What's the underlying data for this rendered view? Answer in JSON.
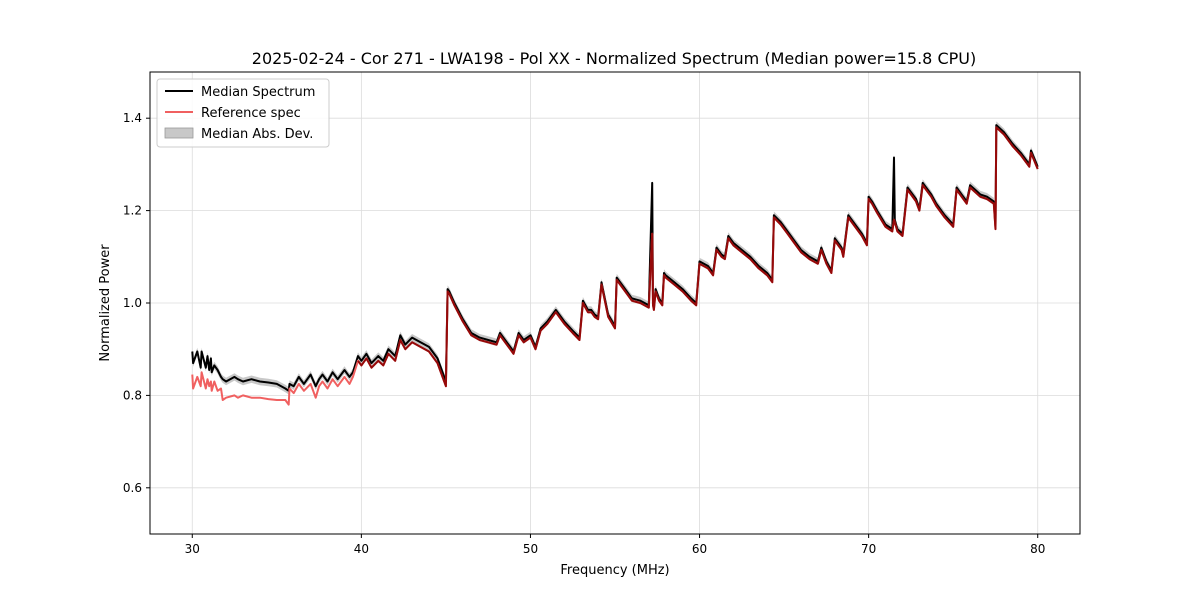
{
  "chart_data": {
    "type": "line",
    "title": "2025-02-24 - Cor 271 - LWA198 - Pol XX - Normalized Spectrum (Median power=15.8 CPU)",
    "xlabel": "Frequency (MHz)",
    "ylabel": "Normalized Power",
    "xlim": [
      27.5,
      82.5
    ],
    "ylim": [
      0.5,
      1.5
    ],
    "xticks": [
      30,
      40,
      50,
      60,
      70,
      80
    ],
    "xtick_labels": [
      "30",
      "40",
      "50",
      "60",
      "70",
      "80"
    ],
    "yticks": [
      0.6,
      0.8,
      1.0,
      1.2,
      1.4
    ],
    "ytick_labels": [
      "0.6",
      "0.8",
      "1.0",
      "1.2",
      "1.4"
    ],
    "grid": true,
    "legend_position": "top-left",
    "legend": [
      {
        "label": "Median Spectrum",
        "kind": "line",
        "color": "#000000"
      },
      {
        "label": "Reference spec",
        "kind": "line",
        "color": "#f06060"
      },
      {
        "label": "Median Abs. Dev.",
        "kind": "band",
        "color": "#c8c8c8"
      }
    ],
    "mad_halfwidth": 0.008,
    "series": [
      {
        "name": "Median Spectrum",
        "x": [
          30.0,
          30.05,
          30.3,
          30.5,
          30.55,
          30.8,
          30.9,
          31.0,
          31.1,
          31.15,
          31.3,
          31.5,
          31.7,
          31.8,
          32.0,
          32.5,
          32.7,
          33.0,
          33.5,
          34.0,
          34.5,
          35.0,
          35.5,
          35.7,
          35.75,
          36.0,
          36.3,
          36.6,
          37.0,
          37.3,
          37.5,
          37.7,
          38.0,
          38.3,
          38.6,
          39.0,
          39.3,
          39.5,
          39.8,
          40.0,
          40.3,
          40.6,
          41.0,
          41.3,
          41.6,
          42.0,
          42.3,
          42.6,
          43.0,
          43.5,
          44.0,
          44.5,
          45.0,
          45.1,
          45.2,
          45.5,
          46.0,
          46.5,
          47.0,
          47.5,
          48.0,
          48.2,
          48.5,
          48.8,
          49.0,
          49.3,
          49.6,
          50.0,
          50.3,
          50.6,
          51.0,
          51.5,
          52.0,
          52.5,
          52.9,
          53.1,
          53.4,
          53.6,
          53.8,
          54.0,
          54.2,
          54.6,
          55.0,
          55.1,
          55.5,
          56.0,
          56.5,
          57.0,
          57.2,
          57.25,
          57.3,
          57.4,
          57.6,
          57.8,
          57.9,
          58.0,
          58.5,
          59.0,
          59.5,
          59.8,
          60.0,
          60.5,
          60.8,
          61.0,
          61.3,
          61.5,
          61.7,
          62.0,
          62.5,
          63.0,
          63.5,
          64.0,
          64.3,
          64.4,
          64.8,
          65.2,
          65.6,
          66.0,
          66.5,
          67.0,
          67.2,
          67.5,
          67.8,
          68.0,
          68.4,
          68.5,
          68.8,
          69.2,
          69.6,
          69.9,
          70.0,
          70.2,
          70.5,
          71.0,
          71.4,
          71.5,
          71.55,
          71.7,
          72.0,
          72.3,
          72.5,
          72.8,
          73.0,
          73.2,
          73.4,
          73.7,
          74.0,
          74.5,
          75.0,
          75.2,
          75.5,
          75.8,
          76.0,
          76.3,
          76.6,
          77.0,
          77.4,
          77.5,
          77.55,
          78.0,
          78.5,
          79.0,
          79.5,
          79.6,
          80.0
        ],
        "y": [
          0.895,
          0.87,
          0.895,
          0.86,
          0.895,
          0.86,
          0.885,
          0.855,
          0.88,
          0.85,
          0.865,
          0.855,
          0.84,
          0.835,
          0.83,
          0.84,
          0.835,
          0.83,
          0.835,
          0.83,
          0.828,
          0.825,
          0.815,
          0.81,
          0.825,
          0.82,
          0.84,
          0.825,
          0.845,
          0.82,
          0.835,
          0.845,
          0.83,
          0.85,
          0.835,
          0.855,
          0.84,
          0.85,
          0.885,
          0.875,
          0.89,
          0.87,
          0.885,
          0.875,
          0.9,
          0.885,
          0.93,
          0.91,
          0.925,
          0.915,
          0.905,
          0.88,
          0.83,
          1.03,
          1.025,
          1.0,
          0.965,
          0.935,
          0.925,
          0.92,
          0.915,
          0.935,
          0.92,
          0.905,
          0.895,
          0.935,
          0.92,
          0.93,
          0.905,
          0.945,
          0.96,
          0.985,
          0.96,
          0.94,
          0.925,
          1.005,
          0.985,
          0.985,
          0.975,
          0.97,
          1.045,
          0.975,
          0.95,
          1.055,
          1.035,
          1.01,
          1.005,
          0.995,
          1.26,
          1.0,
          0.99,
          1.03,
          1.01,
          1.0,
          1.065,
          1.06,
          1.045,
          1.03,
          1.01,
          1.0,
          1.09,
          1.08,
          1.065,
          1.12,
          1.105,
          1.1,
          1.145,
          1.13,
          1.115,
          1.1,
          1.08,
          1.065,
          1.05,
          1.19,
          1.175,
          1.155,
          1.135,
          1.115,
          1.1,
          1.09,
          1.12,
          1.09,
          1.07,
          1.14,
          1.12,
          1.105,
          1.19,
          1.17,
          1.15,
          1.13,
          1.23,
          1.22,
          1.2,
          1.17,
          1.16,
          1.315,
          1.18,
          1.16,
          1.15,
          1.25,
          1.24,
          1.225,
          1.205,
          1.26,
          1.25,
          1.235,
          1.215,
          1.19,
          1.17,
          1.25,
          1.235,
          1.22,
          1.255,
          1.245,
          1.235,
          1.23,
          1.22,
          1.165,
          1.385,
          1.37,
          1.345,
          1.325,
          1.3,
          1.33,
          1.295
        ],
        "color": "#000000"
      },
      {
        "name": "Reference spec",
        "x": [
          30.0,
          30.05,
          30.3,
          30.5,
          30.55,
          30.8,
          30.9,
          31.0,
          31.1,
          31.15,
          31.3,
          31.5,
          31.7,
          31.8,
          32.0,
          32.5,
          32.7,
          33.0,
          33.5,
          34.0,
          34.5,
          35.0,
          35.5,
          35.7,
          35.75,
          36.0,
          36.3,
          36.6,
          37.0,
          37.3,
          37.5,
          37.7,
          38.0,
          38.3,
          38.6,
          39.0,
          39.3,
          39.5,
          39.8,
          40.0,
          40.3,
          40.6,
          41.0,
          41.3,
          41.6,
          42.0,
          42.3,
          42.6,
          43.0,
          43.5,
          44.0,
          44.5,
          45.0,
          45.1,
          45.2,
          45.5,
          46.0,
          46.5,
          47.0,
          47.5,
          48.0,
          48.2,
          48.5,
          48.8,
          49.0,
          49.3,
          49.6,
          50.0,
          50.3,
          50.6,
          51.0,
          51.5,
          52.0,
          52.5,
          52.9,
          53.1,
          53.4,
          53.6,
          53.8,
          54.0,
          54.2,
          54.6,
          55.0,
          55.1,
          55.5,
          56.0,
          56.5,
          57.0,
          57.2,
          57.25,
          57.3,
          57.4,
          57.6,
          57.8,
          57.9,
          58.0,
          58.5,
          59.0,
          59.5,
          59.8,
          60.0,
          60.5,
          60.8,
          61.0,
          61.3,
          61.5,
          61.7,
          62.0,
          62.5,
          63.0,
          63.5,
          64.0,
          64.3,
          64.4,
          64.8,
          65.2,
          65.6,
          66.0,
          66.5,
          67.0,
          67.2,
          67.5,
          67.8,
          68.0,
          68.4,
          68.5,
          68.8,
          69.2,
          69.6,
          69.9,
          70.0,
          70.2,
          70.5,
          71.0,
          71.4,
          71.5,
          71.55,
          71.7,
          72.0,
          72.3,
          72.5,
          72.8,
          73.0,
          73.2,
          73.4,
          73.7,
          74.0,
          74.5,
          75.0,
          75.2,
          75.5,
          75.8,
          76.0,
          76.3,
          76.6,
          77.0,
          77.4,
          77.5,
          77.55,
          78.0,
          78.5,
          79.0,
          79.5,
          79.6,
          80.0
        ],
        "y": [
          0.845,
          0.815,
          0.84,
          0.82,
          0.85,
          0.815,
          0.835,
          0.82,
          0.83,
          0.81,
          0.83,
          0.81,
          0.815,
          0.79,
          0.795,
          0.8,
          0.795,
          0.8,
          0.795,
          0.795,
          0.792,
          0.79,
          0.79,
          0.78,
          0.815,
          0.805,
          0.825,
          0.81,
          0.825,
          0.795,
          0.82,
          0.83,
          0.815,
          0.835,
          0.82,
          0.84,
          0.825,
          0.84,
          0.875,
          0.865,
          0.88,
          0.86,
          0.875,
          0.865,
          0.89,
          0.875,
          0.92,
          0.9,
          0.915,
          0.905,
          0.895,
          0.87,
          0.82,
          1.025,
          1.02,
          0.995,
          0.96,
          0.93,
          0.92,
          0.915,
          0.91,
          0.93,
          0.915,
          0.9,
          0.89,
          0.93,
          0.915,
          0.925,
          0.9,
          0.94,
          0.955,
          0.98,
          0.955,
          0.935,
          0.92,
          1.0,
          0.98,
          0.98,
          0.97,
          0.965,
          1.04,
          0.97,
          0.945,
          1.05,
          1.03,
          1.005,
          1.0,
          0.99,
          1.15,
          0.995,
          0.985,
          1.025,
          1.005,
          0.995,
          1.06,
          1.055,
          1.04,
          1.025,
          1.005,
          0.995,
          1.085,
          1.075,
          1.06,
          1.115,
          1.1,
          1.095,
          1.14,
          1.125,
          1.11,
          1.095,
          1.075,
          1.06,
          1.045,
          1.185,
          1.17,
          1.15,
          1.13,
          1.11,
          1.095,
          1.085,
          1.115,
          1.085,
          1.065,
          1.135,
          1.115,
          1.1,
          1.185,
          1.165,
          1.145,
          1.125,
          1.225,
          1.215,
          1.195,
          1.165,
          1.155,
          1.18,
          1.175,
          1.155,
          1.145,
          1.245,
          1.235,
          1.22,
          1.2,
          1.255,
          1.245,
          1.23,
          1.21,
          1.185,
          1.165,
          1.245,
          1.23,
          1.215,
          1.25,
          1.24,
          1.23,
          1.225,
          1.215,
          1.16,
          1.38,
          1.365,
          1.34,
          1.32,
          1.295,
          1.325,
          1.29
        ],
        "color": "#8b0000"
      }
    ]
  }
}
